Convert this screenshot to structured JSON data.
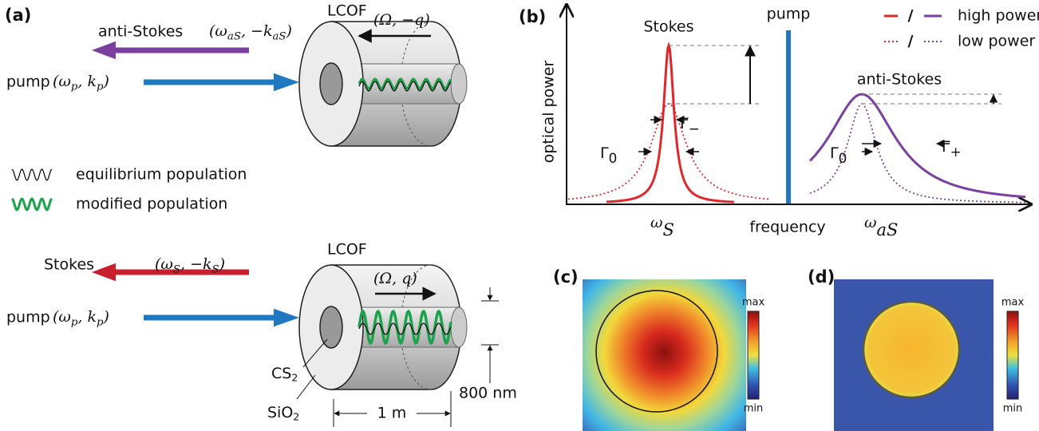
{
  "panel_a": {
    "label": "(a)",
    "top": {
      "beam": "anti-Stokes",
      "beam_math": [
        "(ω",
        "aS",
        ", −k",
        "aS",
        ")"
      ],
      "pump": "pump",
      "pump_math": [
        "(ω",
        "p",
        ", k",
        "p",
        ")"
      ],
      "fiber": "LCOF",
      "phonon_math": [
        "(Ω, −q)"
      ]
    },
    "legend": [
      "equilibrium population",
      "modified population"
    ],
    "bottom": {
      "beam": "Stokes",
      "beam_math": [
        "(ω",
        "S",
        ", −k",
        "S",
        ")"
      ],
      "pump": "pump",
      "pump_math": [
        "(ω",
        "p",
        ", k",
        "p",
        ")"
      ],
      "fiber": "LCOF",
      "phonon_math": [
        "(Ω, q)"
      ],
      "core": [
        "CS",
        "2"
      ],
      "cladding": [
        "SiO",
        "2"
      ],
      "diameter": "800 nm",
      "length": "1 m"
    }
  },
  "panel_b": {
    "label": "(b)",
    "y_axis": "optical power",
    "x_axis": "frequency",
    "stokes": "Stokes",
    "pump": "pump",
    "anti_stokes": "anti-Stokes",
    "legend": [
      "high power",
      "low power"
    ],
    "legend_sep": "/",
    "gamma_minus": [
      "Γ",
      "−"
    ],
    "gamma_zero_s": [
      "Γ",
      "0"
    ],
    "gamma_zero_as": [
      "Γ",
      "0"
    ],
    "gamma_plus": [
      "Γ",
      "+"
    ],
    "omega_s": [
      "ω",
      "S"
    ],
    "omega_as": [
      "ω",
      "aS"
    ]
  },
  "panel_c": {
    "label": "(c)",
    "max": "max",
    "min": "min"
  },
  "panel_d": {
    "label": "(d)",
    "max": "max",
    "min": "min"
  }
}
